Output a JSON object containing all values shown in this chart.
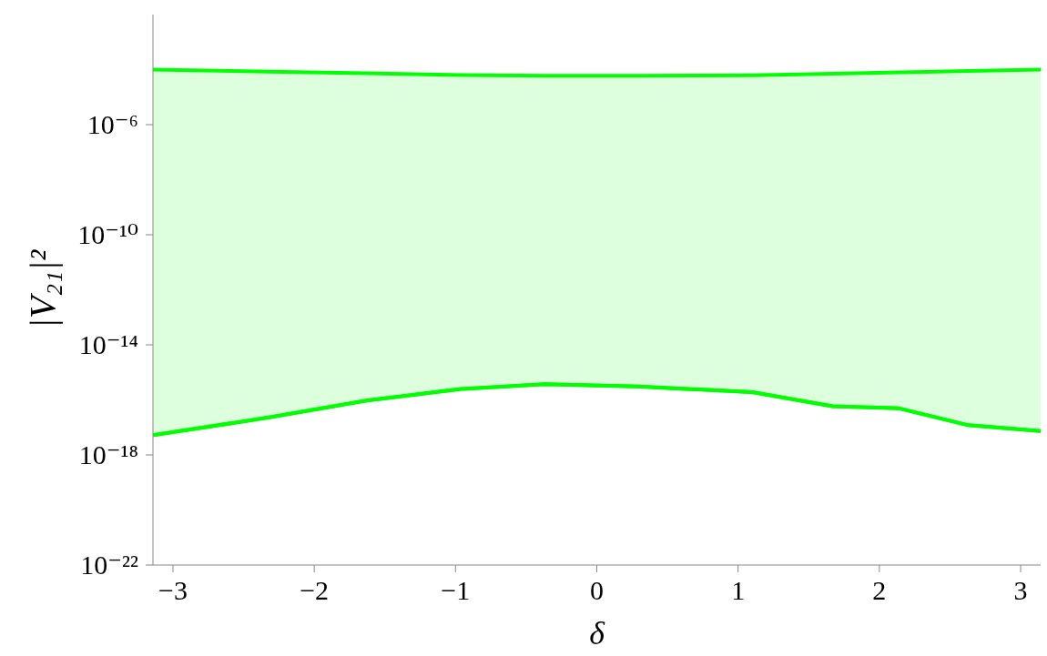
{
  "chart_data": {
    "type": "area",
    "xlabel": "δ",
    "ylabel": "|V₂₁|²",
    "log": true,
    "xlim": [
      -3.1416,
      3.1416
    ],
    "xticks": [
      -3,
      -2,
      -1,
      0,
      1,
      2,
      3
    ],
    "ylim": [
      1e-22,
      0.01
    ],
    "yticks": [
      {
        "value": 1e-22,
        "label": "10⁻²²"
      },
      {
        "value": 1e-18,
        "label": "10⁻¹⁸"
      },
      {
        "value": 1e-14,
        "label": "10⁻¹⁴"
      },
      {
        "value": 1e-10,
        "label": "10⁻¹⁰"
      },
      {
        "value": 1e-06,
        "label": "10⁻⁶"
      }
    ],
    "series": [
      {
        "color": "#00ff00",
        "x": [
          -3.1416,
          -2.32,
          -1.63,
          -0.96,
          -0.37,
          0.29,
          1.1,
          1.67,
          2.14,
          2.63,
          3.1416
        ],
        "values": [
          0.0001,
          8.5e-05,
          7.4e-05,
          6.3e-05,
          6e-05,
          6e-05,
          6.2e-05,
          7.1e-05,
          7.9e-05,
          8.9e-05,
          0.0001
        ]
      },
      {
        "type": "line",
        "color": "#00ff00",
        "x": [
          -3.1416,
          -2.32,
          -1.63,
          -0.96,
          -0.37,
          0.29,
          1.1,
          1.67,
          2.14,
          2.63,
          3.1416
        ],
        "values": [
          5.2e-18,
          2.3e-17,
          9.5e-17,
          2.5e-16,
          3.7e-16,
          3.1e-16,
          1.9e-16,
          5.9e-17,
          4.9e-17,
          1.2e-17,
          7.4e-18
        ]
      }
    ]
  }
}
